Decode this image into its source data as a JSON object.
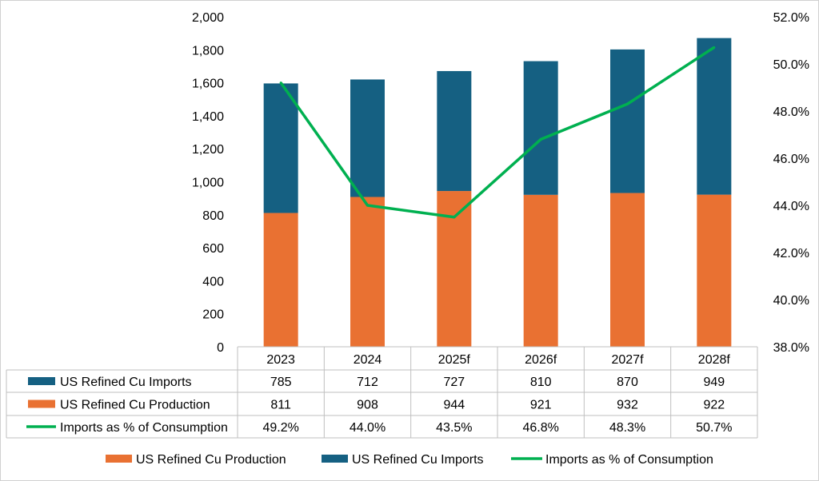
{
  "chart_data": {
    "type": "bar",
    "categories": [
      "2023",
      "2024",
      "2025f",
      "2026f",
      "2027f",
      "2028f"
    ],
    "series": [
      {
        "name": "US Refined Cu Production",
        "kind": "stacked-bar",
        "axis": "left",
        "values": [
          811,
          908,
          944,
          921,
          932,
          922
        ],
        "color": "#e97132"
      },
      {
        "name": "US Refined Cu Imports",
        "kind": "stacked-bar",
        "axis": "left",
        "values": [
          785,
          712,
          727,
          810,
          870,
          949
        ],
        "color": "#156082"
      },
      {
        "name": "Imports as % of Consumption",
        "kind": "line",
        "axis": "right",
        "values": [
          49.2,
          44.0,
          43.5,
          46.8,
          48.3,
          50.7
        ],
        "color": "#00b050"
      }
    ],
    "left_axis": {
      "min": 0,
      "max": 2000,
      "step": 200,
      "ticks": [
        "0",
        "200",
        "400",
        "600",
        "800",
        "1,000",
        "1,200",
        "1,400",
        "1,600",
        "1,800",
        "2,000"
      ]
    },
    "right_axis": {
      "min": 38,
      "max": 52,
      "step": 2,
      "ticks": [
        "38.0%",
        "40.0%",
        "42.0%",
        "44.0%",
        "46.0%",
        "48.0%",
        "50.0%",
        "52.0%"
      ]
    },
    "data_table": {
      "rows": [
        {
          "label": "US Refined Cu Imports",
          "cells": [
            "785",
            "712",
            "727",
            "810",
            "870",
            "949"
          ]
        },
        {
          "label": "US Refined Cu Production",
          "cells": [
            "811",
            "908",
            "944",
            "921",
            "932",
            "922"
          ]
        },
        {
          "label": "Imports as % of Consumption",
          "cells": [
            "49.2%",
            "44.0%",
            "43.5%",
            "46.8%",
            "48.3%",
            "50.7%"
          ]
        }
      ]
    },
    "legend": {
      "placement": "bottom",
      "items": [
        "US Refined Cu Production",
        "US Refined Cu Imports",
        "Imports as % of Consumption"
      ]
    },
    "grid": false
  }
}
